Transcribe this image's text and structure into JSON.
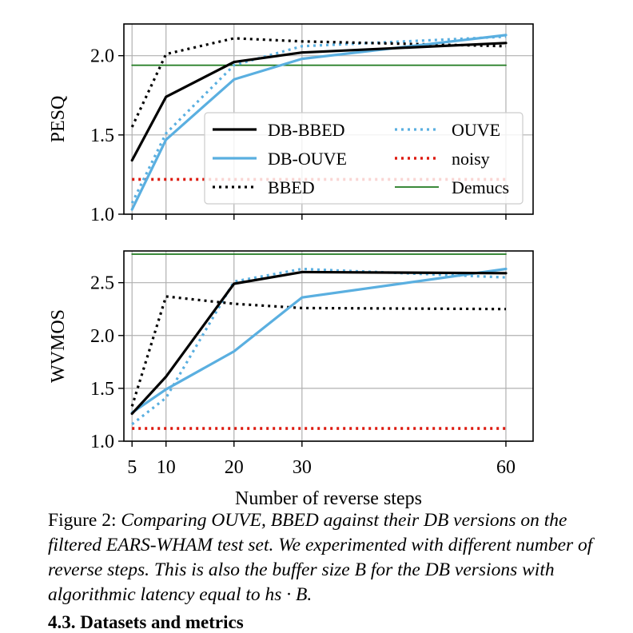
{
  "colors": {
    "black": "#000000",
    "blue": "#5aafe0",
    "red": "#dd1b10",
    "green": "#1f7a1f",
    "grid": "#b0b0b0"
  },
  "shared_xlabel": "Number of reverse steps",
  "shared_xticks": [
    "5",
    "10",
    "20",
    "30",
    "60"
  ],
  "legend": [
    {
      "label": "DB-BBED",
      "color": "#000000",
      "style": "solid"
    },
    {
      "label": "OUVE",
      "color": "#5aafe0",
      "style": "dotted"
    },
    {
      "label": "DB-OUVE",
      "color": "#5aafe0",
      "style": "solid"
    },
    {
      "label": "noisy",
      "color": "#dd1b10",
      "style": "dotted"
    },
    {
      "label": "BBED",
      "color": "#000000",
      "style": "dotted"
    },
    {
      "label": "Demucs",
      "color": "#1f7a1f",
      "style": "thin"
    }
  ],
  "chart_data": [
    {
      "type": "line",
      "ylabel": "PESQ",
      "ylim": [
        1.0,
        2.2
      ],
      "yticks": [
        "1.0",
        "1.5",
        "2.0"
      ],
      "x": [
        5,
        10,
        20,
        30,
        60
      ],
      "legend_position": "center-right",
      "grid": true,
      "series": [
        {
          "name": "DB-BBED",
          "values": [
            1.34,
            1.74,
            1.96,
            2.02,
            2.08
          ]
        },
        {
          "name": "DB-OUVE",
          "values": [
            1.03,
            1.47,
            1.85,
            1.98,
            2.13
          ]
        },
        {
          "name": "BBED",
          "values": [
            1.55,
            2.01,
            2.11,
            2.09,
            2.06
          ]
        },
        {
          "name": "OUVE",
          "values": [
            1.07,
            1.51,
            1.94,
            2.06,
            2.12
          ]
        },
        {
          "name": "noisy",
          "values": [
            1.22,
            1.22,
            1.22,
            1.22,
            1.22
          ]
        },
        {
          "name": "Demucs",
          "values": [
            1.94,
            1.94,
            1.94,
            1.94,
            1.94
          ]
        }
      ]
    },
    {
      "type": "line",
      "ylabel": "WVMOS",
      "ylim": [
        1.0,
        2.8
      ],
      "yticks": [
        "1.0",
        "1.5",
        "2.0",
        "2.5"
      ],
      "x": [
        5,
        10,
        20,
        30,
        60
      ],
      "xlabel": "Number of reverse steps",
      "grid": true,
      "series": [
        {
          "name": "DB-BBED",
          "values": [
            1.26,
            1.61,
            2.49,
            2.6,
            2.59
          ]
        },
        {
          "name": "DB-OUVE",
          "values": [
            1.27,
            1.49,
            1.85,
            2.36,
            2.63
          ]
        },
        {
          "name": "BBED",
          "values": [
            1.33,
            2.37,
            2.3,
            2.26,
            2.25
          ]
        },
        {
          "name": "OUVE",
          "values": [
            1.16,
            1.41,
            2.51,
            2.63,
            2.55
          ]
        },
        {
          "name": "noisy",
          "values": [
            1.12,
            1.12,
            1.12,
            1.12,
            1.12
          ]
        },
        {
          "name": "Demucs",
          "values": [
            2.77,
            2.77,
            2.77,
            2.77,
            2.77
          ]
        }
      ]
    }
  ],
  "caption": {
    "label": "Figure 2:",
    "text": "Comparing OUVE, BBED against their DB versions on the filtered EARS-WHAM test set. We experimented with different number of reverse steps. This is also the buffer size B for the DB versions with algorithmic latency equal to hs · B."
  },
  "next_section": "4.3.  Datasets and metrics"
}
